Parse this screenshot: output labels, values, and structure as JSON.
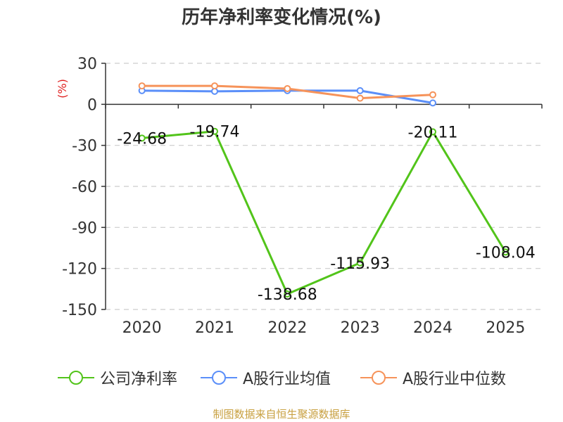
{
  "chart_data": {
    "type": "line",
    "title": "历年净利率变化情况(%)",
    "ylabel": "(%)",
    "categories": [
      "2020",
      "2021",
      "2022",
      "2023",
      "2024",
      "2025"
    ],
    "ylim": [
      -150,
      30
    ],
    "yticks": [
      30,
      0,
      -30,
      -60,
      -90,
      -120,
      -150
    ],
    "grid": true,
    "legend_position": "bottom",
    "series": [
      {
        "name": "公司净利率",
        "color": "#52c41a",
        "values": [
          -24.68,
          -19.74,
          -138.68,
          -115.93,
          -20.11,
          -108.04
        ],
        "labels": [
          "-24.68",
          "-19.74",
          "-138.68",
          "-115.93",
          "-20.11",
          "-108.04"
        ]
      },
      {
        "name": "A股行业均值",
        "color": "#5b8ff9",
        "values": [
          10,
          9.5,
          10,
          10,
          1,
          null
        ]
      },
      {
        "name": "A股行业中位数",
        "color": "#f6935a",
        "values": [
          13.5,
          13.5,
          11.5,
          4.5,
          7,
          null
        ]
      }
    ]
  },
  "source_text": "制图数据来自恒生聚源数据库"
}
